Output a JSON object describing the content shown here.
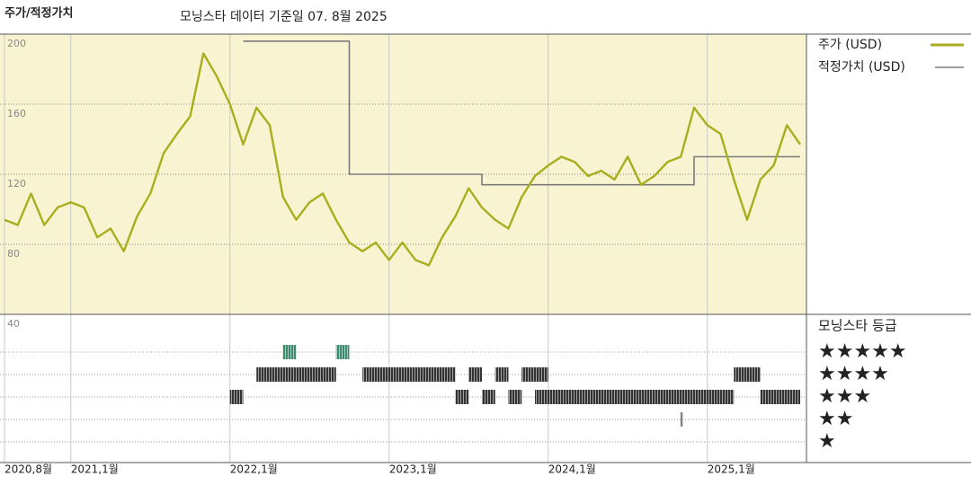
{
  "chart_data": {
    "type": "line",
    "title": "주가/적정가치",
    "subtitle": "모닝스타 데이터 기준일 07. 8월 2025",
    "x": [
      "2020-08",
      "2020-09",
      "2020-10",
      "2020-11",
      "2020-12",
      "2021-01",
      "2021-02",
      "2021-03",
      "2021-04",
      "2021-05",
      "2021-06",
      "2021-07",
      "2021-08",
      "2021-09",
      "2021-10",
      "2021-11",
      "2021-12",
      "2022-01",
      "2022-02",
      "2022-03",
      "2022-04",
      "2022-05",
      "2022-06",
      "2022-07",
      "2022-08",
      "2022-09",
      "2022-10",
      "2022-11",
      "2022-12",
      "2023-01",
      "2023-02",
      "2023-03",
      "2023-04",
      "2023-05",
      "2023-06",
      "2023-07",
      "2023-08",
      "2023-09",
      "2023-10",
      "2023-11",
      "2023-12",
      "2024-01",
      "2024-02",
      "2024-03",
      "2024-04",
      "2024-05",
      "2024-06",
      "2024-07",
      "2024-08",
      "2024-09",
      "2024-10",
      "2024-11",
      "2024-12",
      "2025-01",
      "2025-02",
      "2025-03",
      "2025-04",
      "2025-05",
      "2025-06",
      "2025-07",
      "2025-08"
    ],
    "series": [
      {
        "name": "주가 (USD)",
        "color": "#a9ad1e",
        "values": [
          94,
          91,
          109,
          91,
          101,
          104,
          101,
          84,
          89,
          76,
          96,
          109,
          132,
          143,
          153,
          189,
          176,
          160,
          137,
          158,
          148,
          107,
          94,
          104,
          109,
          94,
          81,
          76,
          81,
          71,
          81,
          71,
          68,
          84,
          96,
          112,
          101,
          94,
          89,
          107,
          119,
          125,
          130,
          127,
          119,
          122,
          117,
          130,
          114,
          119,
          127,
          130,
          158,
          148,
          143,
          117,
          94,
          117,
          125,
          148,
          137
        ]
      },
      {
        "name": "적정가치 (USD)",
        "color": "#7a7a7a",
        "step": true,
        "values": [
          null,
          null,
          null,
          null,
          null,
          null,
          null,
          null,
          null,
          null,
          null,
          null,
          null,
          null,
          null,
          null,
          null,
          null,
          196,
          196,
          196,
          196,
          196,
          196,
          196,
          196,
          120,
          120,
          120,
          120,
          120,
          120,
          120,
          120,
          120,
          120,
          114,
          114,
          114,
          114,
          114,
          114,
          114,
          114,
          114,
          114,
          114,
          114,
          114,
          114,
          114,
          114,
          130,
          130,
          130,
          130,
          130,
          130,
          130,
          130,
          130
        ]
      }
    ],
    "xlim": [
      "2020-08",
      "2025-08"
    ],
    "xticks": [
      {
        "value": "2020-08",
        "label": "2020,8월"
      },
      {
        "value": "2021-01",
        "label": "2021,1월"
      },
      {
        "value": "2022-01",
        "label": "2022,1월"
      },
      {
        "value": "2023-01",
        "label": "2023,1월"
      },
      {
        "value": "2024-01",
        "label": "2024,1월"
      },
      {
        "value": "2025-01",
        "label": "2025,1월"
      }
    ],
    "ylim": [
      40,
      200
    ],
    "yticks": [
      40,
      80,
      120,
      160,
      200
    ],
    "grid": true,
    "background": "#f8f4d2",
    "ratings": {
      "title": "모닝스타 등급",
      "levels": [
        5,
        4,
        3,
        2,
        1
      ],
      "labels": [
        "★★★★★",
        "★★★★",
        "★★★",
        "★★",
        "★"
      ],
      "periods": [
        {
          "stars": 5,
          "start": "2022-05",
          "end": "2022-06",
          "color": "#3d8a6e"
        },
        {
          "stars": 5,
          "start": "2022-09",
          "end": "2022-10",
          "color": "#3d8a6e"
        },
        {
          "stars": 4,
          "start": "2022-03",
          "end": "2022-09",
          "color": "#333333"
        },
        {
          "stars": 4,
          "start": "2022-11",
          "end": "2023-06",
          "color": "#333333"
        },
        {
          "stars": 4,
          "start": "2023-07",
          "end": "2023-08",
          "color": "#333333"
        },
        {
          "stars": 4,
          "start": "2023-09",
          "end": "2023-10",
          "color": "#333333"
        },
        {
          "stars": 4,
          "start": "2023-11",
          "end": "2024-01",
          "color": "#333333"
        },
        {
          "stars": 4,
          "start": "2025-03",
          "end": "2025-05",
          "color": "#333333"
        },
        {
          "stars": 3,
          "start": "2022-01",
          "end": "2022-02",
          "color": "#333333"
        },
        {
          "stars": 3,
          "start": "2023-06",
          "end": "2023-07",
          "color": "#333333"
        },
        {
          "stars": 3,
          "start": "2023-08",
          "end": "2023-09",
          "color": "#333333"
        },
        {
          "stars": 3,
          "start": "2023-10",
          "end": "2023-11",
          "color": "#333333"
        },
        {
          "stars": 3,
          "start": "2023-12",
          "end": "2025-03",
          "color": "#333333"
        },
        {
          "stars": 3,
          "start": "2025-05",
          "end": "2025-08",
          "color": "#333333"
        },
        {
          "stars": 2,
          "start": "2024-11",
          "end": "2024-11",
          "color": "#333333"
        }
      ]
    }
  }
}
